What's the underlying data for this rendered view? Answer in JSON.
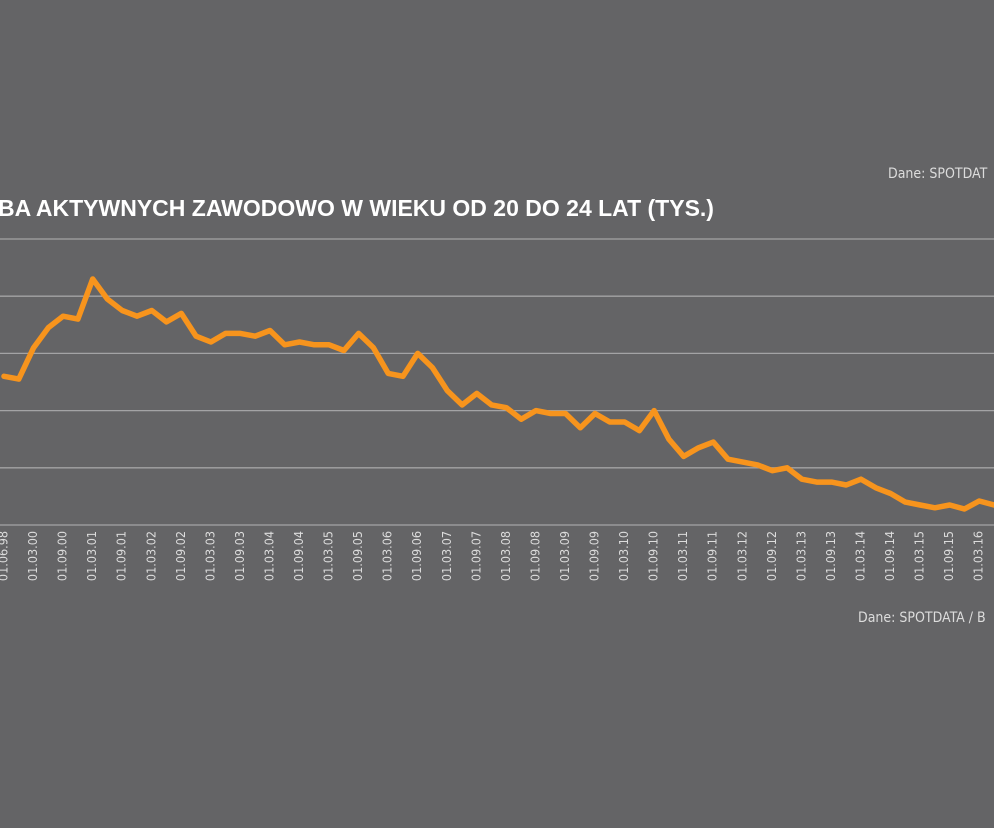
{
  "source_top": "Dane: SPOTDAT",
  "source_bottom": "Dane: SPOTDATA / B",
  "chart_data": {
    "type": "line",
    "title": "BA AKTYWNYCH ZAWODOWO W WIEKU OD 20 DO 24 LAT (TYS.)",
    "line_color": "#f7941d",
    "grid": true,
    "ylim": [
      0,
      5
    ],
    "x_tick_labels": [
      "01.06.98",
      "01.03.00",
      "01.09.00",
      "01.03.01",
      "01.09.01",
      "01.03.02",
      "01.09.02",
      "01.03.03",
      "01.09.03",
      "01.03.04",
      "01.09.04",
      "01.03.05",
      "01.09.05",
      "01.03.06",
      "01.09.06",
      "01.03.07",
      "01.09.07",
      "01.03.08",
      "01.09.08",
      "01.03.09",
      "01.09.09",
      "01.03.10",
      "01.09.10",
      "01.03.11",
      "01.09.11",
      "01.03.12",
      "01.09.12",
      "01.03.13",
      "01.09.13",
      "01.03.14",
      "01.09.14",
      "01.03.15",
      "01.09.15",
      "01.03.16"
    ],
    "values": [
      2.6,
      2.55,
      3.1,
      3.45,
      3.65,
      3.6,
      4.3,
      3.95,
      3.75,
      3.65,
      3.75,
      3.55,
      3.7,
      3.3,
      3.2,
      3.35,
      3.35,
      3.3,
      3.4,
      3.15,
      3.2,
      3.15,
      3.15,
      3.05,
      3.35,
      3.1,
      2.65,
      2.6,
      3.0,
      2.75,
      2.35,
      2.1,
      2.3,
      2.1,
      2.05,
      1.85,
      2.0,
      1.95,
      1.95,
      1.7,
      1.95,
      1.8,
      1.8,
      1.65,
      2.0,
      1.5,
      1.2,
      1.35,
      1.45,
      1.15,
      1.1,
      1.05,
      0.95,
      1.0,
      0.8,
      0.75,
      0.75,
      0.7,
      0.8,
      0.65,
      0.55,
      0.4,
      0.35,
      0.3,
      0.35,
      0.28,
      0.42,
      0.35
    ]
  }
}
